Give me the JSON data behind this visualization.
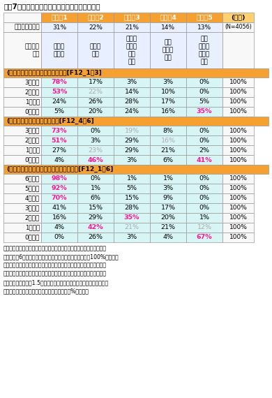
{
  "title": "図表7　正答数ごとに見た各クラスへの帰属確率",
  "headers": [
    "",
    "クラス1",
    "クラス2",
    "クラス3",
    "クラス4",
    "クラス5",
    "(全体)"
  ],
  "size_row": [
    "クラスのサイズ",
    "31%",
    "22%",
    "21%",
    "14%",
    "13%",
    "(N=4056)"
  ],
  "feature_row": [
    "クラスの\n特徴",
    "全般的\nに正答",
    "金融が\n不明",
    "預金は\n正答、\n他は\n誤答",
    "生命\n保険が\n不明",
    "生命\n保険も\n金融も\n不明",
    ""
  ],
  "section1_header": "(客観的な）生命保険リテラシー　[F12_1～3]",
  "section1_rows": [
    [
      "3問正答",
      "78%",
      "17%",
      "3%",
      "3%",
      "0%",
      "100%"
    ],
    [
      "2問正答",
      "53%",
      "22%",
      "14%",
      "10%",
      "0%",
      "100%"
    ],
    [
      "1問正答",
      "24%",
      "26%",
      "28%",
      "17%",
      "5%",
      "100%"
    ],
    [
      "0問正答",
      "5%",
      "20%",
      "24%",
      "16%",
      "35%",
      "100%"
    ]
  ],
  "section1_colors": [
    [
      "pink",
      "normal",
      "normal",
      "normal",
      "normal"
    ],
    [
      "pink",
      "gray",
      "normal",
      "normal",
      "normal"
    ],
    [
      "normal",
      "normal",
      "normal",
      "normal",
      "normal"
    ],
    [
      "normal",
      "normal",
      "normal",
      "normal",
      "pink"
    ]
  ],
  "section2_header": "(客観的な）金融リテラシー　[F12_4～6]",
  "section2_rows": [
    [
      "3問正答",
      "73%",
      "0%",
      "19%",
      "8%",
      "0%",
      "100%"
    ],
    [
      "2問正答",
      "51%",
      "3%",
      "29%",
      "16%",
      "0%",
      "100%"
    ],
    [
      "1問正答",
      "27%",
      "23%",
      "29%",
      "21%",
      "2%",
      "100%"
    ],
    [
      "0問正答",
      "4%",
      "46%",
      "3%",
      "6%",
      "41%",
      "100%"
    ]
  ],
  "section2_colors": [
    [
      "pink",
      "normal",
      "gray",
      "normal",
      "normal"
    ],
    [
      "pink",
      "normal",
      "normal",
      "gray",
      "normal"
    ],
    [
      "normal",
      "gray",
      "normal",
      "normal",
      "normal"
    ],
    [
      "normal",
      "pink",
      "normal",
      "normal",
      "pink"
    ]
  ],
  "section3_header": "(客観的な）生命保険・金融リテラシー　[F12_1～6]",
  "section3_rows": [
    [
      "6問正答",
      "98%",
      "0%",
      "1%",
      "1%",
      "0%",
      "100%"
    ],
    [
      "5問正答",
      "92%",
      "1%",
      "5%",
      "3%",
      "0%",
      "100%"
    ],
    [
      "4問正答",
      "70%",
      "6%",
      "15%",
      "9%",
      "0%",
      "100%"
    ],
    [
      "3問正答",
      "41%",
      "15%",
      "28%",
      "17%",
      "0%",
      "100%"
    ],
    [
      "2問正答",
      "16%",
      "29%",
      "35%",
      "20%",
      "1%",
      "100%"
    ],
    [
      "1問正答",
      "4%",
      "42%",
      "21%",
      "21%",
      "12%",
      "100%"
    ],
    [
      "0問正答",
      "0%",
      "26%",
      "3%",
      "4%",
      "67%",
      "100%"
    ]
  ],
  "section3_colors": [
    [
      "pink",
      "normal",
      "normal",
      "normal",
      "normal"
    ],
    [
      "pink",
      "normal",
      "normal",
      "normal",
      "normal"
    ],
    [
      "pink",
      "normal",
      "normal",
      "normal",
      "normal"
    ],
    [
      "normal",
      "normal",
      "normal",
      "normal",
      "normal"
    ],
    [
      "normal",
      "normal",
      "pink",
      "normal",
      "normal"
    ],
    [
      "normal",
      "pink",
      "gray",
      "normal",
      "gray"
    ],
    [
      "normal",
      "normal",
      "normal",
      "normal",
      "pink"
    ]
  ],
  "note1": "（注１）　ある正答数の人があるクラスに属する確率を示したもの。図\n　　　　表6と異なり、表の各行を（横方向に）合計すると100%になる。",
  "note2": "（注２）　文字が赤色の箇所は、全体の値（この表の場合は上段にある\n　　　　「クラスのサイズ」）と比べて統計的に有意な差があり、かつ\n　　　　全体の値の1.5倍を超えている箇所。文字が灰色の箇所は有意\n　　　　な差がない箇所。いずれも有意水準５%で判断。",
  "header_bg": "#F5A030",
  "data_bg": "#D8F5F5",
  "label_bg": "#F8F8F8",
  "size_bg": "#E8F0FF",
  "total_bg": "#F8F8F8",
  "pink_color": "#FF1493",
  "gray_color": "#AAAAAA",
  "black_color": "#000000",
  "white_color": "#FFFFFF",
  "border_color": "#999999"
}
